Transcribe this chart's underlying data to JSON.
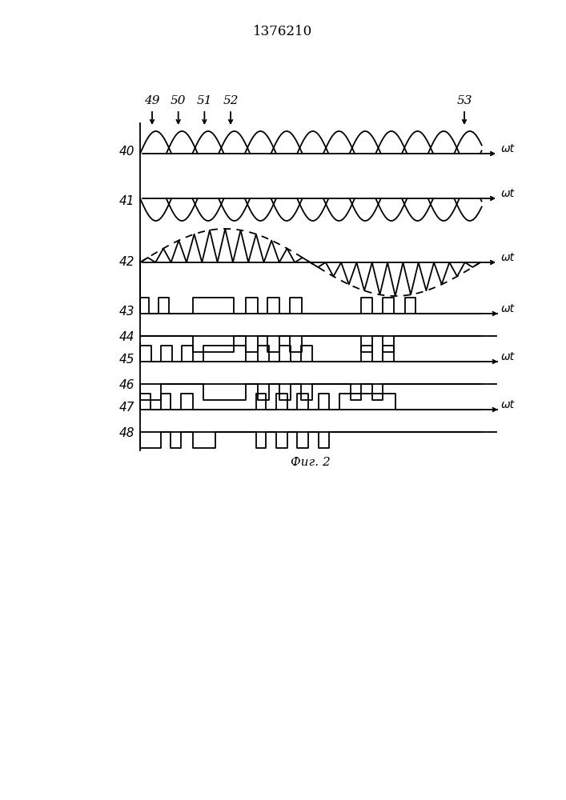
{
  "title": "1376210",
  "fig_label": "Фиг. 2",
  "bg_color": "#ffffff",
  "line_color": "#000000",
  "arrow_labels": [
    "49",
    "50",
    "51",
    "52",
    "53"
  ],
  "wt_label": "ωt"
}
